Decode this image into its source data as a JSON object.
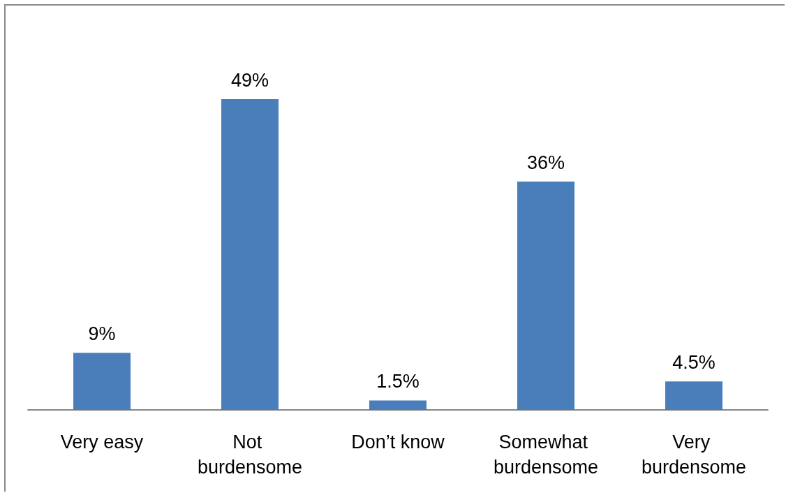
{
  "chart_data": {
    "type": "bar",
    "categories": [
      "Very easy",
      "Not burdensome",
      "Don’t know",
      "Somewhat burdensome",
      "Very burdensome"
    ],
    "values": [
      9,
      49,
      1.5,
      36,
      4.5
    ],
    "value_labels": [
      "9%",
      "49%",
      "1.5%",
      "36%",
      "4.5%"
    ],
    "color": "#4a7ebb",
    "tick_labels": "x"
  }
}
